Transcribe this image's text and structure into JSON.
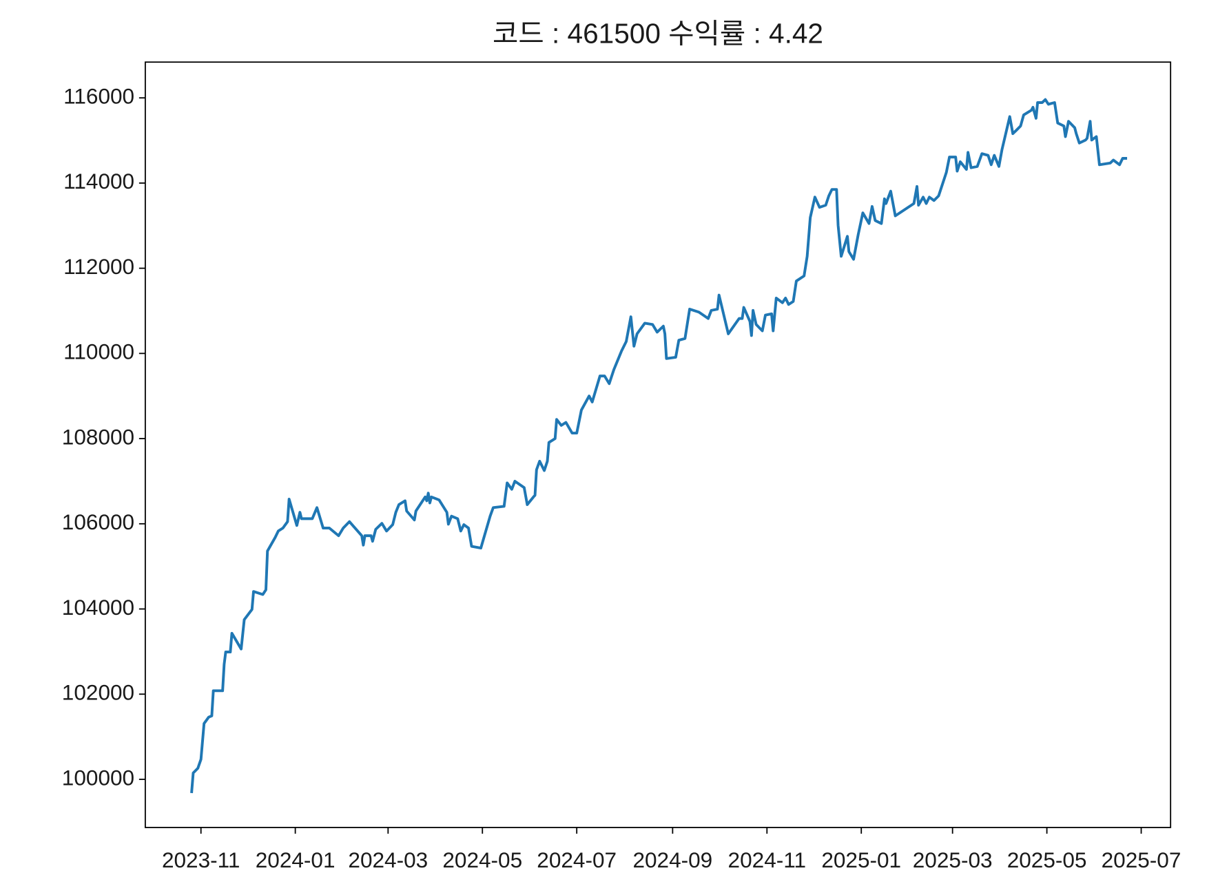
{
  "chart_data": {
    "type": "line",
    "title": "코드 : 461500 수익률 : 4.42",
    "color": "#1f77b4",
    "grid": false,
    "xlim": [
      "2023-09-26",
      "2025-07-20"
    ],
    "xticks": [
      "2023-11",
      "2024-01",
      "2024-03",
      "2024-05",
      "2024-07",
      "2024-09",
      "2024-11",
      "2025-01",
      "2025-03",
      "2025-05",
      "2025-07"
    ],
    "ylim": [
      98870,
      116840
    ],
    "yticks": [
      100000,
      102000,
      104000,
      106000,
      108000,
      110000,
      112000,
      114000,
      116000
    ],
    "x": [
      "2023-10-26",
      "2023-10-27",
      "2023-10-30",
      "2023-11-01",
      "2023-11-03",
      "2023-11-06",
      "2023-11-08",
      "2023-11-09",
      "2023-11-15",
      "2023-11-16",
      "2023-11-17",
      "2023-11-20",
      "2023-11-21",
      "2023-11-27",
      "2023-11-29",
      "2023-12-04",
      "2023-12-05",
      "2023-12-11",
      "2023-12-13",
      "2023-12-14",
      "2023-12-19",
      "2023-12-21",
      "2023-12-24",
      "2023-12-27",
      "2023-12-28",
      "2024-01-02",
      "2024-01-04",
      "2024-01-05",
      "2024-01-12",
      "2024-01-15",
      "2024-01-19",
      "2024-01-23",
      "2024-01-29",
      "2024-02-01",
      "2024-02-05",
      "2024-02-13",
      "2024-02-14",
      "2024-02-15",
      "2024-02-19",
      "2024-02-20",
      "2024-02-22",
      "2024-02-26",
      "2024-02-29",
      "2024-03-04",
      "2024-03-06",
      "2024-03-08",
      "2024-03-12",
      "2024-03-13",
      "2024-03-18",
      "2024-03-19",
      "2024-03-25",
      "2024-03-26",
      "2024-03-27",
      "2024-03-28",
      "2024-03-29",
      "2024-04-03",
      "2024-04-08",
      "2024-04-09",
      "2024-04-11",
      "2024-04-15",
      "2024-04-17",
      "2024-04-19",
      "2024-04-22",
      "2024-04-24",
      "2024-04-30",
      "2024-05-02",
      "2024-05-06",
      "2024-05-08",
      "2024-05-15",
      "2024-05-17",
      "2024-05-20",
      "2024-05-22",
      "2024-05-28",
      "2024-05-30",
      "2024-06-03",
      "2024-06-04",
      "2024-06-05",
      "2024-06-07",
      "2024-06-10",
      "2024-06-12",
      "2024-06-13",
      "2024-06-17",
      "2024-06-18",
      "2024-06-21",
      "2024-06-24",
      "2024-06-28",
      "2024-07-01",
      "2024-07-04",
      "2024-07-09",
      "2024-07-11",
      "2024-07-16",
      "2024-07-19",
      "2024-07-22",
      "2024-07-25",
      "2024-07-30",
      "2024-08-02",
      "2024-08-05",
      "2024-08-07",
      "2024-08-09",
      "2024-08-14",
      "2024-08-19",
      "2024-08-22",
      "2024-08-26",
      "2024-08-27",
      "2024-08-28",
      "2024-09-03",
      "2024-09-05",
      "2024-09-09",
      "2024-09-12",
      "2024-09-18",
      "2024-09-24",
      "2024-09-26",
      "2024-09-30",
      "2024-10-01",
      "2024-10-07",
      "2024-10-14",
      "2024-10-16",
      "2024-10-17",
      "2024-10-21",
      "2024-10-22",
      "2024-10-23",
      "2024-10-25",
      "2024-10-29",
      "2024-10-31",
      "2024-11-04",
      "2024-11-05",
      "2024-11-07",
      "2024-11-11",
      "2024-11-13",
      "2024-11-15",
      "2024-11-18",
      "2024-11-20",
      "2024-11-25",
      "2024-11-27",
      "2024-11-29",
      "2024-12-02",
      "2024-12-05",
      "2024-12-09",
      "2024-12-11",
      "2024-12-13",
      "2024-12-16",
      "2024-12-17",
      "2024-12-19",
      "2024-12-23",
      "2024-12-24",
      "2024-12-27",
      "2024-12-30",
      "2025-01-02",
      "2025-01-06",
      "2025-01-08",
      "2025-01-10",
      "2025-01-14",
      "2025-01-16",
      "2025-01-17",
      "2025-01-20",
      "2025-01-23",
      "2025-02-04",
      "2025-02-06",
      "2025-02-07",
      "2025-02-10",
      "2025-02-12",
      "2025-02-14",
      "2025-02-17",
      "2025-02-20",
      "2025-02-25",
      "2025-02-27",
      "2025-03-03",
      "2025-03-04",
      "2025-03-06",
      "2025-03-10",
      "2025-03-11",
      "2025-03-13",
      "2025-03-17",
      "2025-03-20",
      "2025-03-24",
      "2025-03-26",
      "2025-03-28",
      "2025-03-31",
      "2025-04-02",
      "2025-04-07",
      "2025-04-09",
      "2025-04-11",
      "2025-04-14",
      "2025-04-16",
      "2025-04-21",
      "2025-04-22",
      "2025-04-24",
      "2025-04-25",
      "2025-04-28",
      "2025-04-30",
      "2025-05-02",
      "2025-05-06",
      "2025-05-08",
      "2025-05-12",
      "2025-05-13",
      "2025-05-15",
      "2025-05-19",
      "2025-05-20",
      "2025-05-22",
      "2025-05-26",
      "2025-05-27",
      "2025-05-29",
      "2025-05-30",
      "2025-06-02",
      "2025-06-04",
      "2025-06-11",
      "2025-06-13",
      "2025-06-17",
      "2025-06-19",
      "2025-06-21"
    ],
    "values": [
      99710,
      100150,
      100260,
      100470,
      101310,
      101460,
      101490,
      102080,
      102080,
      102700,
      102990,
      102990,
      103430,
      103060,
      103750,
      103990,
      104410,
      104340,
      104450,
      105360,
      105680,
      105830,
      105900,
      106050,
      106580,
      105960,
      106270,
      106120,
      106120,
      106380,
      105900,
      105900,
      105720,
      105900,
      106050,
      105720,
      105500,
      105720,
      105720,
      105590,
      105870,
      106010,
      105830,
      105980,
      106270,
      106450,
      106540,
      106300,
      106090,
      106300,
      106630,
      106540,
      106720,
      106490,
      106630,
      106560,
      106270,
      105990,
      106180,
      106120,
      105830,
      105980,
      105900,
      105470,
      105430,
      105680,
      106180,
      106380,
      106410,
      106960,
      106810,
      107000,
      106850,
      106450,
      106630,
      106670,
      107270,
      107470,
      107250,
      107470,
      107910,
      108000,
      108450,
      108310,
      108380,
      108130,
      108130,
      108670,
      109000,
      108860,
      109470,
      109470,
      109290,
      109620,
      110060,
      110280,
      110860,
      110170,
      110460,
      110710,
      110680,
      110500,
      110640,
      110460,
      109880,
      109910,
      110310,
      110350,
      111040,
      110970,
      110820,
      111010,
      111040,
      111370,
      110460,
      110820,
      110820,
      111080,
      110750,
      110420,
      111010,
      110680,
      110530,
      110900,
      110930,
      110530,
      111300,
      111190,
      111300,
      111150,
      111220,
      111700,
      111820,
      112280,
      113190,
      113670,
      113430,
      113480,
      113700,
      113850,
      113850,
      113010,
      112280,
      112750,
      112390,
      112210,
      112790,
      113300,
      113050,
      113450,
      113120,
      113050,
      113630,
      113520,
      113810,
      113230,
      113520,
      113920,
      113480,
      113670,
      113520,
      113670,
      113590,
      113700,
      114250,
      114610,
      114610,
      114280,
      114500,
      114320,
      114720,
      114360,
      114390,
      114690,
      114650,
      114430,
      114650,
      114390,
      114790,
      115560,
      115160,
      115230,
      115340,
      115600,
      115710,
      115780,
      115520,
      115890,
      115890,
      115960,
      115850,
      115890,
      115410,
      115340,
      115090,
      115450,
      115300,
      115160,
      114940,
      115010,
      115050,
      115450,
      115010,
      115090,
      114430,
      114470,
      114540,
      114430,
      114580,
      114580
    ]
  }
}
